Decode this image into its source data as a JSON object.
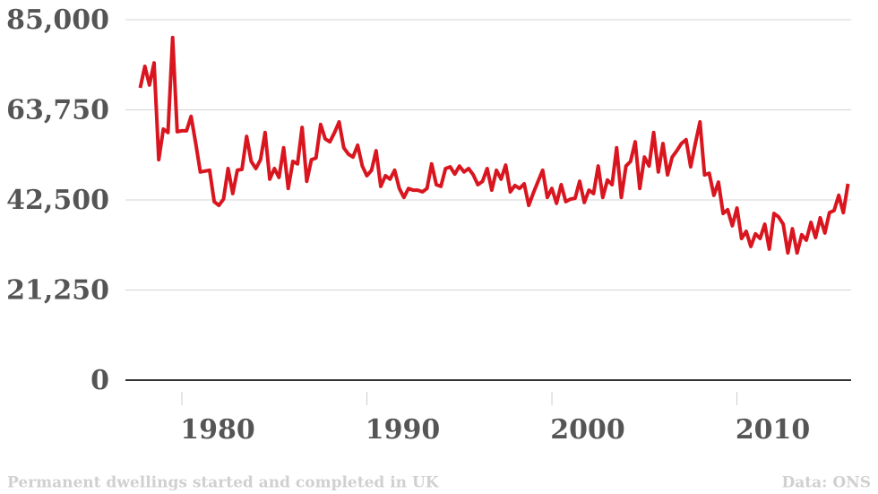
{
  "chart_data": {
    "type": "line",
    "footer": "Permanent dwellings started and completed in UK",
    "source": "Data: ONS",
    "x": [
      1977.75,
      1978,
      1978.25,
      1978.5,
      1978.75,
      1979,
      1979.25,
      1979.5,
      1979.75,
      1980,
      1980.25,
      1980.5,
      1980.75,
      1981,
      1981.25,
      1981.5,
      1981.75,
      1982,
      1982.25,
      1982.5,
      1982.75,
      1983,
      1983.25,
      1983.5,
      1983.75,
      1984,
      1984.25,
      1984.5,
      1984.75,
      1985,
      1985.25,
      1985.5,
      1985.75,
      1986,
      1986.25,
      1986.5,
      1986.75,
      1987,
      1987.25,
      1987.5,
      1987.75,
      1988,
      1988.25,
      1988.5,
      1988.75,
      1989,
      1989.25,
      1989.5,
      1989.75,
      1990,
      1990.25,
      1990.5,
      1990.75,
      1991,
      1991.25,
      1991.5,
      1991.75,
      1992,
      1992.25,
      1992.5,
      1992.75,
      1993,
      1993.25,
      1993.5,
      1993.75,
      1994,
      1994.25,
      1994.5,
      1994.75,
      1995,
      1995.25,
      1995.5,
      1995.75,
      1996,
      1996.25,
      1996.5,
      1996.75,
      1997,
      1997.25,
      1997.5,
      1997.75,
      1998,
      1998.25,
      1998.5,
      1998.75,
      1999,
      1999.25,
      1999.5,
      1999.75,
      2000,
      2000.25,
      2000.5,
      2000.75,
      2001,
      2001.25,
      2001.5,
      2001.75,
      2002,
      2002.25,
      2002.5,
      2002.75,
      2003,
      2003.25,
      2003.5,
      2003.75,
      2004,
      2004.25,
      2004.5,
      2004.75,
      2005,
      2005.25,
      2005.5,
      2005.75,
      2006,
      2006.25,
      2006.5,
      2006.75,
      2007,
      2007.25,
      2007.5,
      2007.75,
      2008,
      2008.25,
      2008.5,
      2008.75,
      2009,
      2009.25,
      2009.5,
      2009.75,
      2010,
      2010.25,
      2010.5,
      2010.75,
      2011,
      2011.25,
      2011.5,
      2011.75,
      2012,
      2012.25,
      2012.5,
      2012.75,
      2013,
      2013.25,
      2013.5,
      2013.75,
      2014,
      2014.25,
      2014.5,
      2014.75,
      2015,
      2015.25,
      2015.5,
      2015.75,
      2016
    ],
    "series": [
      {
        "color": "#d9161f",
        "values": [
          68900,
          74000,
          69600,
          74800,
          52000,
          59200,
          58400,
          80800,
          58600,
          58800,
          58800,
          62200,
          55800,
          49100,
          49300,
          49500,
          42100,
          41200,
          42700,
          49900,
          44000,
          49500,
          49700,
          57500,
          51600,
          49900,
          52000,
          58400,
          47400,
          49900,
          47800,
          54800,
          45200,
          51600,
          51000,
          59600,
          46900,
          52000,
          52400,
          60300,
          56900,
          56200,
          58400,
          60900,
          54800,
          53300,
          52600,
          55400,
          50500,
          48200,
          49500,
          54100,
          45700,
          48200,
          47400,
          49500,
          45200,
          43100,
          45200,
          44800,
          44800,
          44400,
          45200,
          51000,
          46100,
          45700,
          49900,
          50300,
          48600,
          50500,
          49100,
          49900,
          48400,
          46100,
          46900,
          49900,
          44800,
          49500,
          47400,
          50700,
          44400,
          45900,
          45200,
          46300,
          41200,
          44200,
          46900,
          49500,
          43100,
          45200,
          41700,
          46100,
          42100,
          42700,
          42900,
          46900,
          41900,
          44800,
          44000,
          50500,
          43100,
          47200,
          46100,
          54800,
          43100,
          50500,
          51600,
          56200,
          45200,
          52600,
          50500,
          58400,
          49100,
          55800,
          48400,
          52600,
          54100,
          55800,
          56700,
          50300,
          55800,
          60900,
          48400,
          48800,
          43600,
          46700,
          39300,
          40200,
          36400,
          40600,
          33400,
          35100,
          31500,
          34500,
          33400,
          36800,
          30900,
          39300,
          38500,
          36800,
          30000,
          35700,
          30000,
          34300,
          33000,
          37200,
          33600,
          38300,
          34700,
          39500,
          40000,
          43600,
          39500,
          46300
        ]
      }
    ],
    "xlim": [
      1976.95,
      2016.17
    ],
    "xticks": [
      1980,
      1990,
      2000,
      2010
    ],
    "ylim": [
      0,
      85000
    ],
    "yticks": [
      0,
      {
        "value": 21250,
        "label": "21,250"
      },
      {
        "value": 42500,
        "label": "42,500"
      },
      {
        "value": 63750,
        "label": "63,750"
      },
      {
        "value": 85000,
        "label": "85,000"
      }
    ],
    "grid": true
  }
}
